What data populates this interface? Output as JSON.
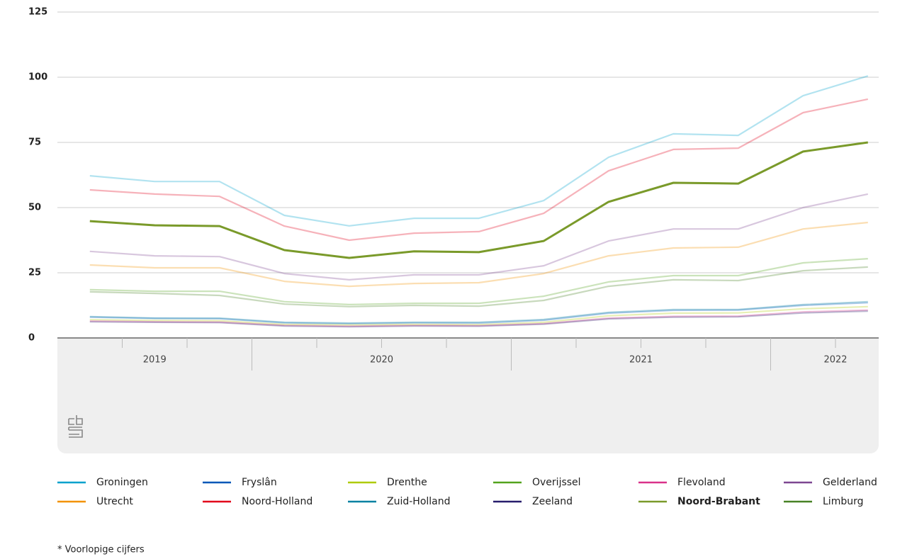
{
  "chart_data": {
    "type": "line",
    "categories": [
      null,
      null,
      null,
      null,
      null,
      null,
      null,
      null,
      null,
      null,
      null,
      null,
      null
    ],
    "x_groups": [
      {
        "label": "2019",
        "count": 3
      },
      {
        "label": "2020",
        "count": 4
      },
      {
        "label": "2021",
        "count": 4
      },
      {
        "label": "2022",
        "count": 2
      }
    ],
    "ylim": [
      0,
      125
    ],
    "yticks": [
      0,
      25,
      50,
      75,
      100,
      125
    ],
    "grid": true,
    "highlight": "Noord-Brabant",
    "series": [
      {
        "name": "Groningen",
        "color": "#00a1cd",
        "values": [
          62.2,
          60,
          60,
          47,
          43,
          45.9,
          45.9,
          52.7,
          69.3,
          78.3,
          77.7,
          92.9,
          100.5
        ]
      },
      {
        "name": "Fryslân",
        "color": "#0058b8",
        "values": [
          8,
          7.5,
          7.4,
          5.8,
          5.5,
          5.8,
          5.7,
          6.8,
          9.5,
          10.6,
          10.7,
          12.5,
          13.5
        ]
      },
      {
        "name": "Drenthe",
        "color": "#afcb05",
        "values": [
          7,
          6.7,
          6.6,
          5.2,
          5,
          5.2,
          5.1,
          6,
          8.5,
          9.5,
          9.6,
          11.2,
          12
        ]
      },
      {
        "name": "Overijssel",
        "color": "#53a31d",
        "values": [
          18.5,
          17.9,
          17.9,
          13.9,
          12.8,
          13.3,
          13.3,
          16,
          21.5,
          23.9,
          23.9,
          28.8,
          30.4
        ]
      },
      {
        "name": "Flevoland",
        "color": "#d9328a",
        "values": [
          6.5,
          6.2,
          6.1,
          4.8,
          4.5,
          4.8,
          4.7,
          5.5,
          7.6,
          8.3,
          8.4,
          10,
          10.7
        ]
      },
      {
        "name": "Gelderland",
        "color": "#7d4791",
        "values": [
          33.2,
          31.5,
          31.2,
          24.7,
          22.3,
          24.2,
          24.2,
          27.7,
          37.2,
          41.8,
          41.8,
          50,
          55.2
        ]
      },
      {
        "name": "Utrecht",
        "color": "#f39200",
        "values": [
          28,
          26.9,
          26.9,
          21.7,
          19.8,
          20.9,
          21.2,
          24.7,
          31.5,
          34.5,
          34.8,
          41.8,
          44.3
        ]
      },
      {
        "name": "Noord-Holland",
        "color": "#e1001a",
        "values": [
          56.8,
          55.2,
          54.3,
          42.9,
          37.5,
          40.2,
          40.8,
          47.8,
          64.1,
          72.3,
          72.8,
          86.4,
          91.6
        ]
      },
      {
        "name": "Zuid-Holland",
        "color": "#0581a2",
        "values": [
          8.2,
          7.6,
          7.6,
          6,
          5.7,
          6,
          6,
          7.1,
          9.8,
          10.9,
          10.9,
          12.8,
          13.9
        ]
      },
      {
        "name": "Zeeland",
        "color": "#271d6c",
        "values": [
          6.2,
          6,
          5.9,
          4.6,
          4.3,
          4.6,
          4.5,
          5.3,
          7.3,
          8,
          8.1,
          9.6,
          10.3
        ]
      },
      {
        "name": "Noord-Brabant",
        "color": "#7a9a2a",
        "values": [
          44.8,
          43.2,
          42.9,
          33.7,
          30.7,
          33.2,
          32.9,
          37.2,
          52.2,
          59.5,
          59.2,
          71.5,
          75
        ]
      },
      {
        "name": "Limburg",
        "color": "#488225",
        "values": [
          17.7,
          17.1,
          16.3,
          13,
          12,
          12.5,
          12.2,
          14.4,
          19.8,
          22.3,
          22,
          25.8,
          27.2
        ]
      }
    ],
    "footnote": "* Voorlopige cijfers"
  }
}
